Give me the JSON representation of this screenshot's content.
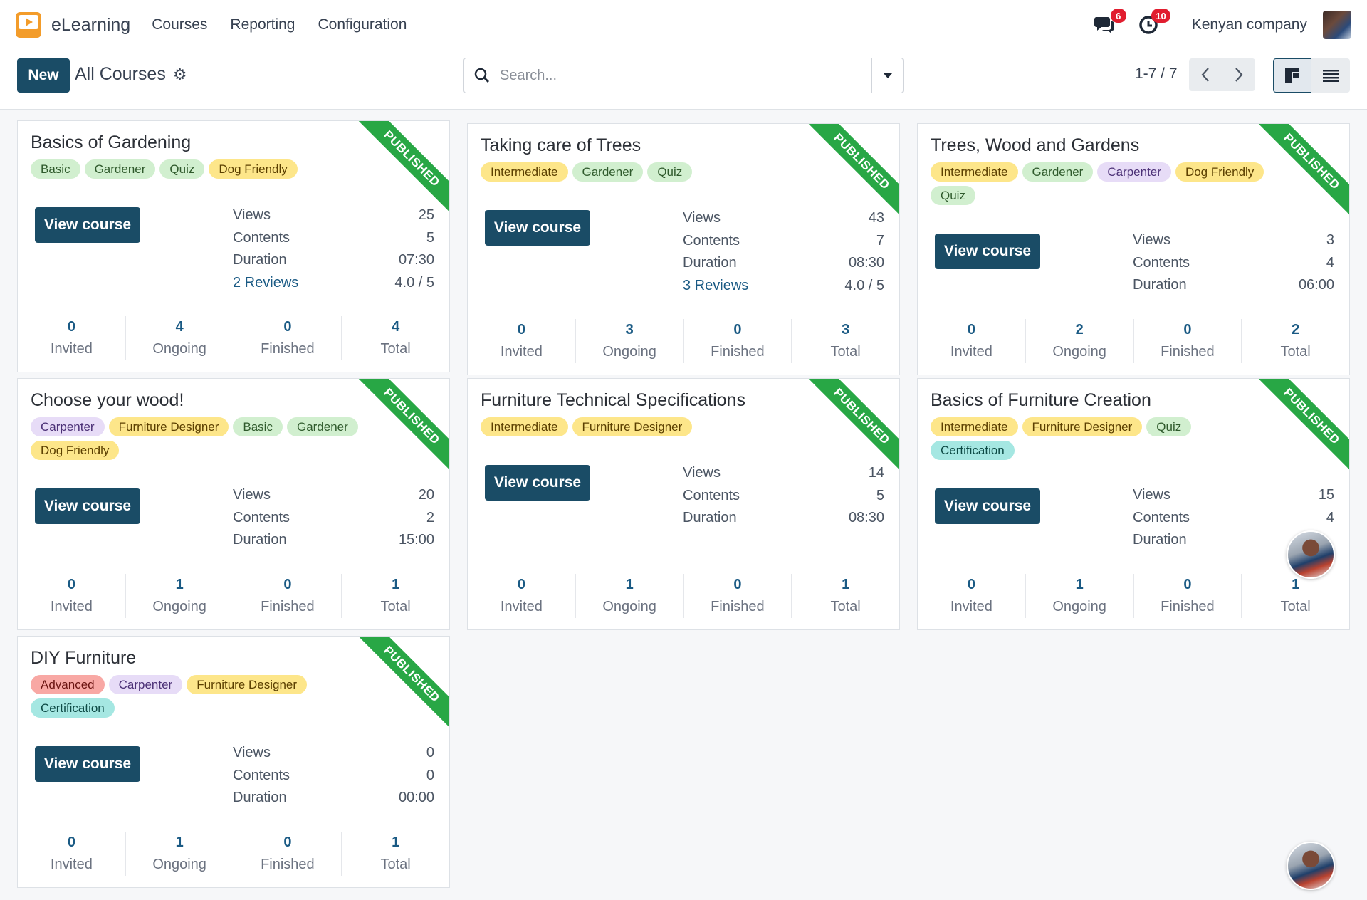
{
  "nav": {
    "brand": "eLearning",
    "menu": [
      "Courses",
      "Reporting",
      "Configuration"
    ],
    "messages_badge": "6",
    "activities_badge": "10",
    "company": "Kenyan company"
  },
  "control": {
    "new_label": "New",
    "breadcrumb": "All Courses",
    "search_placeholder": "Search...",
    "pager": "1-7 / 7"
  },
  "courses": [
    {
      "title": "Basics of Gardening",
      "ribbon": "PUBLISHED",
      "tags": [
        {
          "label": "Basic",
          "color": "green"
        },
        {
          "label": "Gardener",
          "color": "green"
        },
        {
          "label": "Quiz",
          "color": "green"
        },
        {
          "label": "Dog Friendly",
          "color": "yellow"
        }
      ],
      "button": "View course",
      "stats": [
        {
          "label": "Views",
          "value": "25"
        },
        {
          "label": "Contents",
          "value": "5"
        },
        {
          "label": "Duration",
          "value": "07:30"
        },
        {
          "label": "2 Reviews",
          "value": "4.0 / 5",
          "link": true
        }
      ],
      "counters": [
        {
          "num": "0",
          "label": "Invited"
        },
        {
          "num": "4",
          "label": "Ongoing"
        },
        {
          "num": "0",
          "label": "Finished"
        },
        {
          "num": "4",
          "label": "Total"
        }
      ]
    },
    {
      "title": "Taking care of Trees",
      "ribbon": "PUBLISHED",
      "tags": [
        {
          "label": "Intermediate",
          "color": "yellow"
        },
        {
          "label": "Gardener",
          "color": "green"
        },
        {
          "label": "Quiz",
          "color": "green"
        }
      ],
      "button": "View course",
      "stats": [
        {
          "label": "Views",
          "value": "43"
        },
        {
          "label": "Contents",
          "value": "7"
        },
        {
          "label": "Duration",
          "value": "08:30"
        },
        {
          "label": "3 Reviews",
          "value": "4.0 / 5",
          "link": true
        }
      ],
      "counters": [
        {
          "num": "0",
          "label": "Invited"
        },
        {
          "num": "3",
          "label": "Ongoing"
        },
        {
          "num": "0",
          "label": "Finished"
        },
        {
          "num": "3",
          "label": "Total"
        }
      ]
    },
    {
      "title": "Trees, Wood and Gardens",
      "ribbon": "PUBLISHED",
      "tags": [
        {
          "label": "Intermediate",
          "color": "yellow"
        },
        {
          "label": "Gardener",
          "color": "green"
        },
        {
          "label": "Carpenter",
          "color": "purple"
        },
        {
          "label": "Dog Friendly",
          "color": "yellow"
        },
        {
          "label": "Quiz",
          "color": "green"
        }
      ],
      "button": "View course",
      "stats": [
        {
          "label": "Views",
          "value": "3"
        },
        {
          "label": "Contents",
          "value": "4"
        },
        {
          "label": "Duration",
          "value": "06:00"
        }
      ],
      "counters": [
        {
          "num": "0",
          "label": "Invited"
        },
        {
          "num": "2",
          "label": "Ongoing"
        },
        {
          "num": "0",
          "label": "Finished"
        },
        {
          "num": "2",
          "label": "Total"
        }
      ]
    },
    {
      "title": "Choose your wood!",
      "ribbon": "PUBLISHED",
      "tags": [
        {
          "label": "Carpenter",
          "color": "purple"
        },
        {
          "label": "Furniture Designer",
          "color": "yellow"
        },
        {
          "label": "Basic",
          "color": "green"
        },
        {
          "label": "Gardener",
          "color": "green"
        },
        {
          "label": "Dog Friendly",
          "color": "yellow"
        }
      ],
      "button": "View course",
      "stats": [
        {
          "label": "Views",
          "value": "20"
        },
        {
          "label": "Contents",
          "value": "2"
        },
        {
          "label": "Duration",
          "value": "15:00"
        }
      ],
      "counters": [
        {
          "num": "0",
          "label": "Invited"
        },
        {
          "num": "1",
          "label": "Ongoing"
        },
        {
          "num": "0",
          "label": "Finished"
        },
        {
          "num": "1",
          "label": "Total"
        }
      ]
    },
    {
      "title": "Furniture Technical Specifications",
      "ribbon": "PUBLISHED",
      "tags": [
        {
          "label": "Intermediate",
          "color": "yellow"
        },
        {
          "label": "Furniture Designer",
          "color": "yellow"
        }
      ],
      "button": "View course",
      "stats": [
        {
          "label": "Views",
          "value": "14"
        },
        {
          "label": "Contents",
          "value": "5"
        },
        {
          "label": "Duration",
          "value": "08:30"
        }
      ],
      "counters": [
        {
          "num": "0",
          "label": "Invited"
        },
        {
          "num": "1",
          "label": "Ongoing"
        },
        {
          "num": "0",
          "label": "Finished"
        },
        {
          "num": "1",
          "label": "Total"
        }
      ]
    },
    {
      "title": "Basics of Furniture Creation",
      "ribbon": "PUBLISHED",
      "tags": [
        {
          "label": "Intermediate",
          "color": "yellow"
        },
        {
          "label": "Furniture Designer",
          "color": "yellow"
        },
        {
          "label": "Quiz",
          "color": "green"
        },
        {
          "label": "Certification",
          "color": "teal"
        }
      ],
      "button": "View course",
      "stats": [
        {
          "label": "Views",
          "value": "15"
        },
        {
          "label": "Contents",
          "value": "4"
        },
        {
          "label": "Duration",
          "value": ""
        }
      ],
      "counters": [
        {
          "num": "0",
          "label": "Invited"
        },
        {
          "num": "1",
          "label": "Ongoing"
        },
        {
          "num": "0",
          "label": "Finished"
        },
        {
          "num": "1",
          "label": "Total"
        }
      ]
    },
    {
      "title": "DIY Furniture",
      "ribbon": "PUBLISHED",
      "tags": [
        {
          "label": "Advanced",
          "color": "red"
        },
        {
          "label": "Carpenter",
          "color": "purple"
        },
        {
          "label": "Furniture Designer",
          "color": "yellow"
        },
        {
          "label": "Certification",
          "color": "teal"
        }
      ],
      "button": "View course",
      "stats": [
        {
          "label": "Views",
          "value": "0"
        },
        {
          "label": "Contents",
          "value": "0"
        },
        {
          "label": "Duration",
          "value": "00:00"
        }
      ],
      "counters": [
        {
          "num": "0",
          "label": "Invited"
        },
        {
          "num": "1",
          "label": "Ongoing"
        },
        {
          "num": "0",
          "label": "Finished"
        },
        {
          "num": "1",
          "label": "Total"
        }
      ]
    }
  ]
}
